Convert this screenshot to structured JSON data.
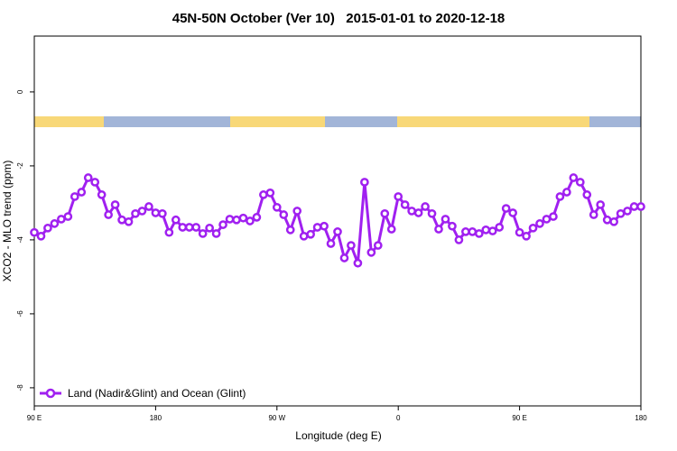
{
  "chart_data": {
    "type": "line",
    "title": "45N-50N October (Ver 10)   2015-01-01 to 2020-12-18",
    "x_label": "Longitude (deg E)",
    "y_label": "XCO2 - MLO trend (ppm)",
    "x": [
      90,
      95,
      100,
      105,
      110,
      115,
      120,
      125,
      130,
      135,
      140,
      145,
      150,
      155,
      160,
      165,
      170,
      175,
      180,
      185,
      190,
      195,
      200,
      205,
      210,
      215,
      220,
      225,
      230,
      235,
      240,
      245,
      250,
      255,
      260,
      265,
      270,
      275,
      280,
      285,
      290,
      295,
      300,
      305,
      310,
      315,
      320,
      325,
      330,
      335,
      340,
      345,
      350,
      355,
      360,
      365,
      370,
      375,
      380,
      385,
      390,
      395,
      400,
      405,
      410,
      415,
      420,
      425,
      430,
      435,
      440,
      445,
      450,
      455,
      460,
      465,
      470,
      475,
      480,
      485,
      490,
      495,
      500,
      505,
      510,
      515,
      520,
      525,
      530,
      535,
      540
    ],
    "series": [
      {
        "name": "Land (Nadir&Glint) and Ocean (Glint)",
        "color": "#a020f0",
        "values": [
          -3.8,
          -3.9,
          -3.68,
          -3.56,
          -3.44,
          -3.37,
          -2.83,
          -2.71,
          -2.32,
          -2.44,
          -2.78,
          -3.32,
          -3.05,
          -3.46,
          -3.51,
          -3.29,
          -3.22,
          -3.1,
          -3.27,
          -3.29,
          -3.8,
          -3.46,
          -3.66,
          -3.66,
          -3.66,
          -3.83,
          -3.68,
          -3.83,
          -3.59,
          -3.44,
          -3.46,
          -3.41,
          -3.49,
          -3.39,
          -2.78,
          -2.73,
          -3.12,
          -3.32,
          -3.73,
          -3.22,
          -3.9,
          -3.85,
          -3.66,
          -3.63,
          -4.1,
          -3.78,
          -4.49,
          -4.15,
          -4.63,
          -2.44,
          -4.34,
          -4.15,
          -3.29,
          -3.71,
          -2.83,
          -3.05,
          -3.22,
          -3.27,
          -3.1,
          -3.29,
          -3.71,
          -3.44,
          -3.63,
          -4.0,
          -3.78,
          -3.78,
          -3.83,
          -3.73,
          -3.76,
          -3.66,
          -3.15,
          -3.27,
          -3.8,
          -3.9,
          -3.68,
          -3.56,
          -3.44,
          -3.37,
          -2.83,
          -2.71,
          -2.32,
          -2.44,
          -2.78,
          -3.32,
          -3.05,
          -3.46,
          -3.51,
          -3.29,
          -3.22,
          -3.1,
          -3.1
        ]
      }
    ],
    "xlim": [
      90,
      540
    ],
    "xticks": [
      {
        "value": 90,
        "label": "90 E"
      },
      {
        "value": 180,
        "label": "180"
      },
      {
        "value": 270,
        "label": "90 W"
      },
      {
        "value": 360,
        "label": "0"
      },
      {
        "value": 450,
        "label": "90 E"
      },
      {
        "value": 540,
        "label": "180"
      }
    ],
    "ylim": [
      -8.49,
      1.51
    ],
    "yticks": [
      0,
      -2,
      -4,
      -6,
      -8
    ],
    "legend": "bottom-left"
  }
}
